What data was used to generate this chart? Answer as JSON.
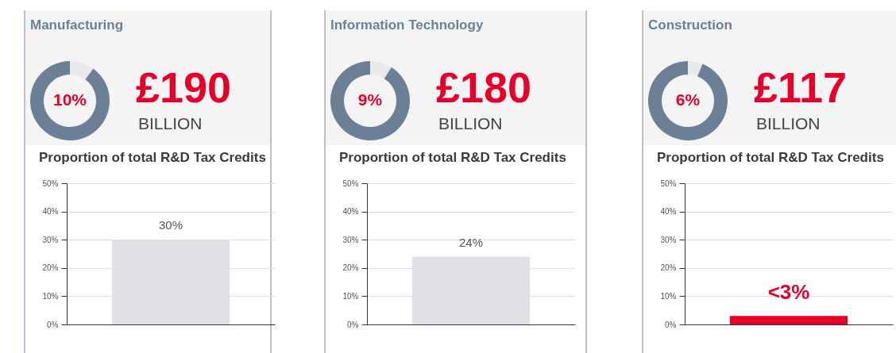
{
  "chart_data": [
    {
      "type": "donut",
      "title": "Manufacturing",
      "categories": [
        null,
        null
      ],
      "values": [
        10,
        90
      ],
      "colors": [
        "#e8e9eb",
        "#6b7f96"
      ],
      "annotations": [
        "10%",
        "£190",
        "BILLION"
      ]
    },
    {
      "type": "bar",
      "title": "Proportion of total R&D Tax Credits",
      "categories": [
        null
      ],
      "values": [
        30
      ],
      "colors": [
        "#dfe1e6"
      ],
      "value_labels": [
        "30%"
      ],
      "ylim": [
        0,
        50
      ],
      "yticks": [
        {
          "value": 0,
          "label": "0%"
        },
        {
          "value": 10,
          "label": "10%"
        },
        {
          "value": 20,
          "label": "20%"
        },
        {
          "value": 30,
          "label": "30%"
        },
        {
          "value": 40,
          "label": "40%"
        },
        {
          "value": 50,
          "label": "50%"
        }
      ],
      "grid": "y",
      "tick_labels": "y"
    },
    {
      "type": "donut",
      "title": "Information Technology",
      "categories": [
        null,
        null
      ],
      "values": [
        9,
        91
      ],
      "colors": [
        "#e8e9eb",
        "#6b7f96"
      ],
      "annotations": [
        "9%",
        "£180",
        "BILLION"
      ]
    },
    {
      "type": "bar",
      "title": "Proportion of total R&D Tax Credits",
      "categories": [
        null
      ],
      "values": [
        24
      ],
      "colors": [
        "#dfe1e6"
      ],
      "value_labels": [
        "24%"
      ],
      "ylim": [
        0,
        50
      ],
      "yticks": [
        {
          "value": 0,
          "label": "0%"
        },
        {
          "value": 10,
          "label": "10%"
        },
        {
          "value": 20,
          "label": "20%"
        },
        {
          "value": 30,
          "label": "30%"
        },
        {
          "value": 40,
          "label": "40%"
        },
        {
          "value": 50,
          "label": "50%"
        }
      ],
      "grid": "y",
      "tick_labels": "y"
    },
    {
      "type": "donut",
      "title": "Construction",
      "categories": [
        null,
        null
      ],
      "values": [
        6,
        94
      ],
      "colors": [
        "#e8e9eb",
        "#6b7f96"
      ],
      "annotations": [
        "6%",
        "£117",
        "BILLION"
      ]
    },
    {
      "type": "bar",
      "title": "Proportion of total R&D Tax Credits",
      "categories": [
        null
      ],
      "values": [
        3
      ],
      "colors": [
        "#e4002b"
      ],
      "value_labels": [
        "<3%"
      ],
      "ylim": [
        0,
        50
      ],
      "yticks": [
        {
          "value": 0,
          "label": "0%"
        },
        {
          "value": 10,
          "label": "10%"
        },
        {
          "value": 20,
          "label": "20%"
        },
        {
          "value": 30,
          "label": "30%"
        },
        {
          "value": 40,
          "label": "40%"
        },
        {
          "value": 50,
          "label": "50%"
        }
      ],
      "grid": "y",
      "tick_labels": "y"
    }
  ]
}
